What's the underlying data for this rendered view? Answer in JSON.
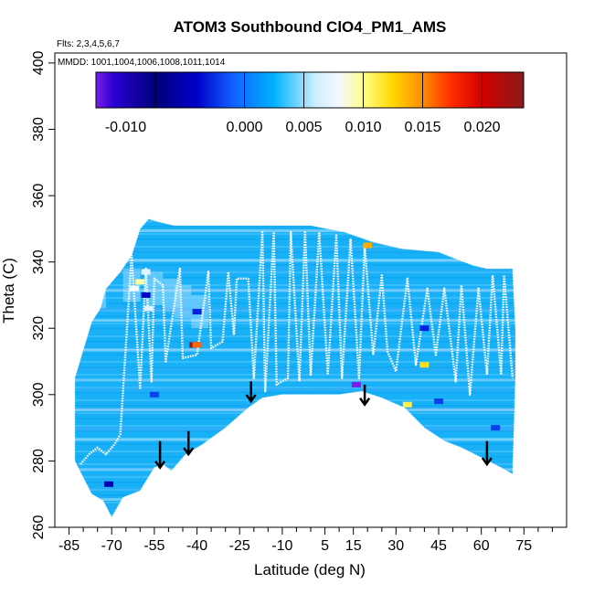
{
  "chart_data": {
    "type": "heatmap",
    "title": "ATOM3 Southbound ClO4_PM1_AMS",
    "flights_label": "Flts: 2,3,4,5,6,7",
    "dates_label": "MMDD: 1001,1004,1006,1008,1011,1014",
    "xlabel": "Latitude (deg N)",
    "ylabel": "Theta (C)",
    "xlim": [
      -90,
      90
    ],
    "ylim": [
      260,
      403
    ],
    "x_ticks": [
      -85,
      -70,
      -55,
      -40,
      -25,
      -10,
      5,
      15,
      30,
      45,
      60,
      75
    ],
    "x_minor_ticks": [
      -80,
      -75,
      -65,
      -60,
      -50,
      -45,
      -35,
      -30,
      -20,
      -15,
      -5,
      0,
      10,
      20,
      25,
      35,
      40,
      50,
      55,
      65,
      70,
      80,
      85
    ],
    "y_ticks": [
      260,
      280,
      300,
      320,
      340,
      360,
      380,
      400
    ],
    "colorbar": {
      "range": [
        -0.0125,
        0.0235
      ],
      "tick_values": [
        -0.01,
        0.0,
        0.005,
        0.01,
        0.015,
        0.02
      ],
      "tick_labels": [
        "-0.010",
        "0.000",
        "0.005",
        "0.010",
        "0.015",
        "0.020"
      ],
      "divider_values": [
        -0.0075,
        0.0,
        0.005,
        0.01,
        0.015,
        0.02
      ],
      "stops": [
        {
          "v": -0.0125,
          "c": "#7a1ee6"
        },
        {
          "v": -0.011,
          "c": "#2a00d0"
        },
        {
          "v": -0.0075,
          "c": "#00007a"
        },
        {
          "v": -0.004,
          "c": "#0000c8"
        },
        {
          "v": -0.001,
          "c": "#1060ff"
        },
        {
          "v": 0.0025,
          "c": "#00b2ff"
        },
        {
          "v": 0.006,
          "c": "#cfeeff"
        },
        {
          "v": 0.008,
          "c": "#f4f8ff"
        },
        {
          "v": 0.01,
          "c": "#ffff88"
        },
        {
          "v": 0.0125,
          "c": "#ffd700"
        },
        {
          "v": 0.015,
          "c": "#ff8c00"
        },
        {
          "v": 0.0175,
          "c": "#ff2a00"
        },
        {
          "v": 0.02,
          "c": "#d20000"
        },
        {
          "v": 0.0235,
          "c": "#8b1a1a"
        }
      ]
    },
    "envelope": {
      "top": [
        [
          -83,
          305
        ],
        [
          -77,
          322
        ],
        [
          -74,
          326
        ],
        [
          -72,
          332
        ],
        [
          -67,
          337
        ],
        [
          -63,
          342
        ],
        [
          -60,
          350
        ],
        [
          -57,
          353
        ],
        [
          -53,
          352
        ],
        [
          -48,
          351
        ],
        [
          -40,
          351
        ],
        [
          -28,
          351
        ],
        [
          -17,
          351
        ],
        [
          0,
          351
        ],
        [
          12,
          349
        ],
        [
          22,
          346
        ],
        [
          32,
          344
        ],
        [
          45,
          343
        ],
        [
          57,
          339
        ],
        [
          62,
          338
        ],
        [
          71,
          338
        ],
        [
          72,
          320
        ]
      ],
      "bottom": [
        [
          72,
          304
        ],
        [
          71,
          276
        ],
        [
          67,
          278
        ],
        [
          60,
          281
        ],
        [
          53,
          284
        ],
        [
          47,
          286
        ],
        [
          40,
          290
        ],
        [
          33,
          296
        ],
        [
          25,
          299
        ],
        [
          18,
          301
        ],
        [
          10,
          300
        ],
        [
          0,
          300
        ],
        [
          -10,
          300
        ],
        [
          -17,
          299
        ],
        [
          -22,
          296
        ],
        [
          -30,
          290
        ],
        [
          -38,
          285
        ],
        [
          -44,
          282
        ],
        [
          -49,
          277
        ],
        [
          -52,
          279
        ],
        [
          -55,
          278
        ],
        [
          -60,
          271
        ],
        [
          -66,
          269
        ],
        [
          -70,
          263
        ],
        [
          -73,
          268
        ],
        [
          -77,
          270
        ],
        [
          -80,
          275
        ],
        [
          -83,
          280
        ]
      ]
    },
    "profiles": {
      "tops": [
        [
          -63,
          342
        ],
        [
          -58,
          338
        ],
        [
          -55,
          335
        ],
        [
          -52,
          333
        ],
        [
          -46,
          338
        ],
        [
          -36,
          337
        ],
        [
          -29,
          337
        ],
        [
          -26,
          335
        ],
        [
          -22,
          335
        ],
        [
          -17,
          349
        ],
        [
          -13,
          349
        ],
        [
          -7,
          349
        ],
        [
          -2,
          349
        ],
        [
          3,
          349
        ],
        [
          9,
          348
        ],
        [
          14,
          347
        ],
        [
          19,
          345
        ],
        [
          25,
          336
        ],
        [
          34,
          335
        ],
        [
          41,
          332
        ],
        [
          47,
          332
        ],
        [
          53,
          333
        ],
        [
          59,
          332
        ],
        [
          64,
          336
        ],
        [
          68,
          336
        ]
      ],
      "bottoms": [
        [
          -81,
          279
        ],
        [
          -78,
          282
        ],
        [
          -75,
          284
        ],
        [
          -72,
          282
        ],
        [
          -69,
          285
        ],
        [
          -67,
          288
        ],
        [
          -60,
          302
        ],
        [
          -56,
          304
        ],
        [
          -51,
          310
        ],
        [
          -45,
          311
        ],
        [
          -40,
          312
        ],
        [
          -35,
          314
        ],
        [
          -31,
          316
        ],
        [
          -27,
          318
        ],
        [
          -20,
          305
        ],
        [
          -16,
          301
        ],
        [
          -12,
          303
        ],
        [
          -8,
          305
        ],
        [
          -4,
          304
        ],
        [
          0,
          306
        ],
        [
          6,
          306
        ],
        [
          11,
          305
        ],
        [
          17,
          305
        ],
        [
          22,
          312
        ],
        [
          27,
          313
        ],
        [
          30,
          307
        ],
        [
          37,
          309
        ],
        [
          44,
          312
        ],
        [
          51,
          304
        ],
        [
          56,
          300
        ],
        [
          62,
          306
        ],
        [
          67,
          306
        ],
        [
          71,
          305
        ]
      ]
    },
    "hotspots": [
      {
        "x": -41,
        "y": 315,
        "value": 0.0225
      },
      {
        "x": -40,
        "y": 315,
        "value": 0.016
      },
      {
        "x": 20,
        "y": 345,
        "value": 0.014
      },
      {
        "x": 34,
        "y": 297,
        "value": 0.011
      },
      {
        "x": 40,
        "y": 309,
        "value": 0.012
      },
      {
        "x": -62,
        "y": 332,
        "value": 0.008
      },
      {
        "x": -60,
        "y": 334,
        "value": 0.0095
      },
      {
        "x": -58,
        "y": 337,
        "value": 0.007
      },
      {
        "x": -57,
        "y": 326,
        "value": 0.007
      },
      {
        "x": 16,
        "y": 303,
        "value": -0.0125
      },
      {
        "x": -58,
        "y": 330,
        "value": -0.004
      },
      {
        "x": -71,
        "y": 273,
        "value": -0.005
      },
      {
        "x": -40,
        "y": 325,
        "value": -0.003
      },
      {
        "x": 40,
        "y": 320,
        "value": -0.003
      },
      {
        "x": 45,
        "y": 298,
        "value": -0.002
      },
      {
        "x": 65,
        "y": 290,
        "value": -0.002
      },
      {
        "x": -55,
        "y": 300,
        "value": -0.002
      }
    ],
    "arrows": [
      {
        "x": -53,
        "y_top": 286,
        "y_tip": 278
      },
      {
        "x": -43,
        "y_top": 289,
        "y_tip": 282
      },
      {
        "x": -21,
        "y_top": 304,
        "y_tip": 298
      },
      {
        "x": 19,
        "y_top": 303,
        "y_tip": 297
      },
      {
        "x": 62,
        "y_top": 286,
        "y_tip": 279
      }
    ]
  }
}
